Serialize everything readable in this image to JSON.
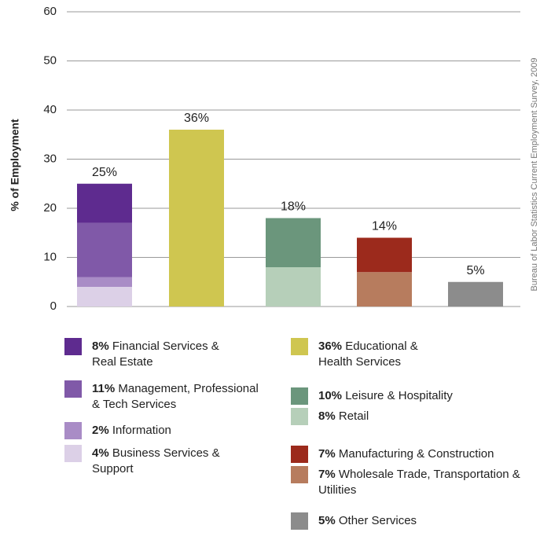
{
  "chart_data": {
    "type": "stacked_bar",
    "y_label": "% of Employment",
    "source": "Bureau of Labor Statistics Current Employment Survey, 2009",
    "categories": [
      null,
      null,
      null,
      null,
      null
    ],
    "totals": [
      25,
      36,
      18,
      14,
      5
    ],
    "total_labels": [
      "25%",
      "36%",
      "18%",
      "14%",
      "5%"
    ],
    "ylim": [
      0,
      60
    ],
    "yticks": [
      0,
      10,
      20,
      30,
      40,
      50,
      60
    ],
    "grid": true,
    "series": [
      {
        "name": "Business Services & Support",
        "color": "#dcd0e7",
        "values": [
          4,
          null,
          null,
          null,
          null
        ],
        "value_labels": [
          "4%",
          null,
          null,
          null,
          null
        ]
      },
      {
        "name": "Information",
        "color": "#a98cc6",
        "values": [
          2,
          null,
          null,
          null,
          null
        ],
        "value_labels": [
          "2%",
          null,
          null,
          null,
          null
        ]
      },
      {
        "name": "Management, Professional & Tech Services",
        "color": "#8059a8",
        "values": [
          11,
          null,
          null,
          null,
          null
        ],
        "value_labels": [
          "11%",
          null,
          null,
          null,
          null
        ]
      },
      {
        "name": "Financial Services & Real Estate",
        "color": "#5e2b8f",
        "values": [
          8,
          null,
          null,
          null,
          null
        ],
        "value_labels": [
          "8%",
          null,
          null,
          null,
          null
        ]
      },
      {
        "name": "Educational & Health Services",
        "color": "#cfc650",
        "values": [
          null,
          36,
          null,
          null,
          null
        ],
        "value_labels": [
          null,
          "36%",
          null,
          null,
          null
        ]
      },
      {
        "name": "Retail",
        "color": "#b6cfb9",
        "values": [
          null,
          null,
          8,
          null,
          null
        ],
        "value_labels": [
          null,
          null,
          "8%",
          null,
          null
        ]
      },
      {
        "name": "Leisure & Hospitality",
        "color": "#6b967c",
        "values": [
          null,
          null,
          10,
          null,
          null
        ],
        "value_labels": [
          null,
          null,
          "10%",
          null,
          null
        ]
      },
      {
        "name": "Wholesale Trade, Transportation & Utilities",
        "color": "#b77c5e",
        "values": [
          null,
          null,
          null,
          7,
          null
        ],
        "value_labels": [
          null,
          null,
          null,
          "7%",
          null
        ]
      },
      {
        "name": "Manufacturing & Construction",
        "color": "#9c2a1c",
        "values": [
          null,
          null,
          null,
          7,
          null
        ],
        "value_labels": [
          null,
          null,
          null,
          "7%",
          null
        ]
      },
      {
        "name": "Other Services",
        "color": "#8c8c8c",
        "values": [
          null,
          null,
          null,
          null,
          5
        ],
        "value_labels": [
          null,
          null,
          null,
          null,
          "5%"
        ]
      }
    ]
  }
}
